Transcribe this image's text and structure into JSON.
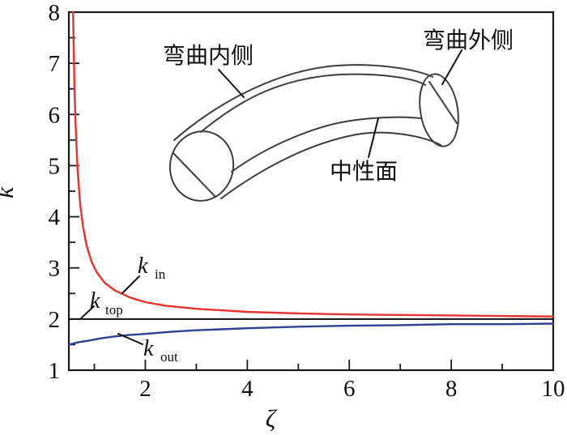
{
  "chart_data": {
    "type": "line",
    "title": "",
    "xlabel": "ζ",
    "ylabel": "k",
    "xlim": [
      0.5,
      10
    ],
    "ylim": [
      1,
      8
    ],
    "x_major_ticks": [
      2,
      4,
      6,
      8,
      10
    ],
    "x_minor_ticks": [
      1,
      3,
      5,
      7,
      9
    ],
    "y_major_ticks": [
      1,
      2,
      3,
      4,
      5,
      6,
      7,
      8
    ],
    "y_minor_ticks": [
      1.5,
      2.5,
      3.5,
      4.5,
      5.5,
      6.5,
      7.5
    ],
    "grid": false,
    "legend_position": "none (inline labels with leader lines)",
    "series": [
      {
        "name": "k_in",
        "color": "#e8322d",
        "points": [
          [
            0.583,
            8.0
          ],
          [
            0.59,
            7.56
          ],
          [
            0.61,
            6.55
          ],
          [
            0.63,
            5.85
          ],
          [
            0.67,
            4.94
          ],
          [
            0.72,
            4.27
          ],
          [
            0.78,
            3.79
          ],
          [
            0.85,
            3.43
          ],
          [
            0.95,
            3.11
          ],
          [
            1.05,
            2.91
          ],
          [
            1.2,
            2.71
          ],
          [
            1.4,
            2.56
          ],
          [
            1.7,
            2.42
          ],
          [
            2.0,
            2.33
          ],
          [
            2.4,
            2.26
          ],
          [
            3.0,
            2.2
          ],
          [
            3.5,
            2.17
          ],
          [
            4.0,
            2.14
          ],
          [
            5.0,
            2.11
          ],
          [
            6.0,
            2.09
          ],
          [
            7.0,
            2.08
          ],
          [
            8.0,
            2.07
          ],
          [
            9.0,
            2.06
          ],
          [
            10.0,
            2.05
          ]
        ]
      },
      {
        "name": "k_top",
        "color": "#111111",
        "points": [
          [
            0.5,
            2.0
          ],
          [
            10.0,
            2.0
          ]
        ]
      },
      {
        "name": "k_out",
        "color": "#2f3f94",
        "points": [
          [
            0.5,
            1.5
          ],
          [
            0.7,
            1.55
          ],
          [
            0.9,
            1.58
          ],
          [
            1.1,
            1.62
          ],
          [
            1.4,
            1.66
          ],
          [
            1.7,
            1.69
          ],
          [
            2.0,
            1.71
          ],
          [
            2.5,
            1.75
          ],
          [
            3.0,
            1.78
          ],
          [
            3.5,
            1.8
          ],
          [
            4.0,
            1.82
          ],
          [
            5.0,
            1.85
          ],
          [
            6.0,
            1.87
          ],
          [
            7.0,
            1.88
          ],
          [
            8.0,
            1.9
          ],
          [
            9.0,
            1.9
          ],
          [
            10.0,
            1.91
          ]
        ]
      }
    ],
    "curve_labels": {
      "in": {
        "main": "k",
        "sub": "in"
      },
      "top": {
        "main": "k",
        "sub": "top"
      },
      "out": {
        "main": "k",
        "sub": "out"
      }
    }
  },
  "inset": {
    "labels": {
      "inner": "弯曲内侧",
      "outer": "弯曲外侧",
      "neutral": "中性面"
    }
  },
  "colors": {
    "k_in_line": "#e8322d",
    "k_out_line": "#2f3f94",
    "k_top_line": "#111111",
    "axis_ink": "#1a1a1a",
    "background": "#ffffff"
  }
}
